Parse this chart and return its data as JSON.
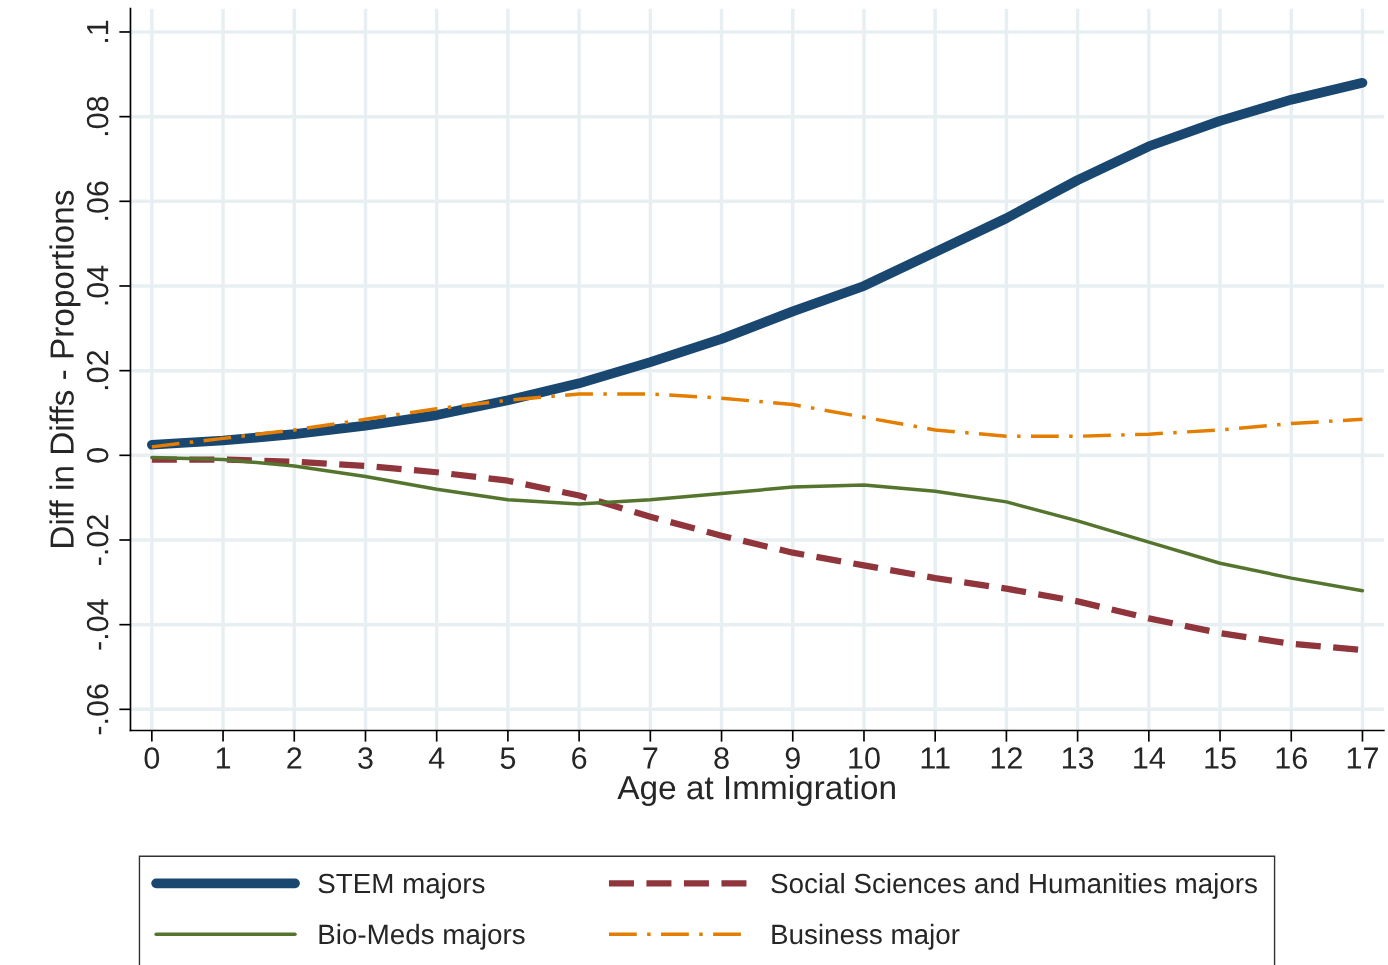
{
  "chart_data": {
    "type": "line",
    "xlabel": "Age at Immigration",
    "ylabel": "Diff in Diffs - Proportions",
    "x": [
      0,
      1,
      2,
      3,
      4,
      5,
      6,
      7,
      8,
      9,
      10,
      11,
      12,
      13,
      14,
      15,
      16,
      17
    ],
    "series": [
      {
        "name": "STEM majors",
        "color": "#1a476f",
        "line_style": "solid",
        "values": [
          0.0025,
          0.0035,
          0.005,
          0.007,
          0.0095,
          0.013,
          0.017,
          0.022,
          0.0275,
          0.034,
          0.04,
          0.048,
          0.056,
          0.065,
          0.073,
          0.079,
          0.084,
          0.088
        ]
      },
      {
        "name": "Social Sciences and Humanities majors",
        "color": "#90353b",
        "line_style": "dashed",
        "values": [
          -0.001,
          -0.001,
          -0.0015,
          -0.0025,
          -0.004,
          -0.006,
          -0.0095,
          -0.0145,
          -0.019,
          -0.023,
          -0.026,
          -0.029,
          -0.0315,
          -0.0345,
          -0.0385,
          -0.042,
          -0.0445,
          -0.046
        ]
      },
      {
        "name": "Bio-Meds majors",
        "color": "#55752f",
        "line_style": "solid",
        "values": [
          -0.0005,
          -0.001,
          -0.0025,
          -0.005,
          -0.008,
          -0.0105,
          -0.0115,
          -0.0105,
          -0.009,
          -0.0075,
          -0.007,
          -0.0085,
          -0.011,
          -0.0155,
          -0.0205,
          -0.0255,
          -0.029,
          -0.032
        ]
      },
      {
        "name": "Business major",
        "color": "#e37e00",
        "line_style": "dashdot",
        "values": [
          0.002,
          0.004,
          0.006,
          0.0085,
          0.011,
          0.013,
          0.0145,
          0.0145,
          0.0135,
          0.012,
          0.009,
          0.006,
          0.0045,
          0.0045,
          0.005,
          0.006,
          0.0075,
          0.0085
        ]
      }
    ],
    "xlim": [
      -0.3,
      17.3
    ],
    "xticks": [
      0,
      1,
      2,
      3,
      4,
      5,
      6,
      7,
      8,
      9,
      10,
      11,
      12,
      13,
      14,
      15,
      16,
      17
    ],
    "ylim": [
      -0.065,
      0.1055
    ],
    "yticks": [
      {
        "value": -0.06,
        "label": "-.06"
      },
      {
        "value": -0.04,
        "label": "-.04"
      },
      {
        "value": -0.02,
        "label": "-.02"
      },
      {
        "value": 0,
        "label": "0"
      },
      {
        "value": 0.02,
        "label": ".02"
      },
      {
        "value": 0.04,
        "label": ".04"
      },
      {
        "value": 0.06,
        "label": ".06"
      },
      {
        "value": 0.08,
        "label": ".08"
      },
      {
        "value": 0.1,
        "label": ".1"
      }
    ],
    "grid": true,
    "legend": "bottom"
  }
}
